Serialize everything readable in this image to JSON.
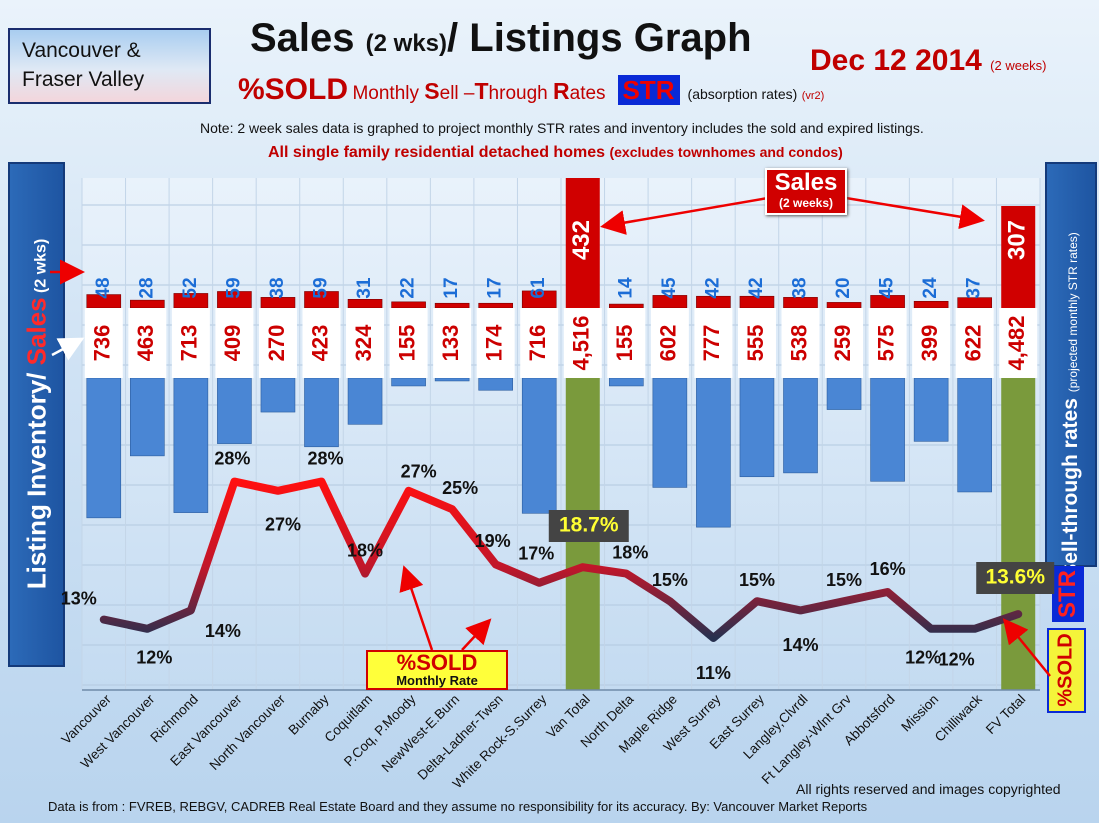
{
  "header": {
    "region_line1": "Vancouver &",
    "region_line2": "Fraser Valley",
    "title_main": "Sales",
    "title_small": "(2 wks)",
    "title_rest": "/ Listings Graph",
    "date": "Dec 12 2014",
    "date_note": "(2 weeks)",
    "subtitle_sold": "%SOLD",
    "subtitle_m": "Monthly ",
    "subtitle_s1": "S",
    "subtitle_s2": "ell –",
    "subtitle_t1": "T",
    "subtitle_t2": "hrough ",
    "subtitle_r1": "R",
    "subtitle_r2": "ates",
    "str_badge": "STR",
    "absorption": "(absorption rates)",
    "version": "(vr2)",
    "note": "Note: 2 week sales data is graphed to project monthly STR rates and inventory includes the sold and expired listings.",
    "note2_main": "All single family residential detached homes",
    "note2_small": "(excludes townhomes and condos)"
  },
  "side_labels": {
    "left_inventory": "Listing Inventory/ ",
    "left_sales": "Sales",
    "left_small": " (2 wks)",
    "right_main": "Sell-through rates",
    "right_small": "(projected monthly STR rates)",
    "right_str": "STR",
    "right_sold": "%SOLD"
  },
  "annotations": {
    "sales_callout": "Sales",
    "sales_callout_sub": "(2 weeks)",
    "sold_legend": "%SOLD",
    "sold_legend_sub": "Monthly Rate",
    "van_total_pct_badge": "18.7%",
    "fv_total_pct_badge": "13.6%"
  },
  "footer": {
    "copyright": "All rights reserved and  images copyrighted",
    "source": "Data is from : FVREB, REBGV, CADREB Real Estate Board and they assume no responsibility for its accuracy. By: Vancouver Market Reports"
  },
  "colors": {
    "sales_bar": "#d00000",
    "inventory_bar": "#4a86d4",
    "total_bar": "#7a9a3c",
    "line_red": "#ee1111",
    "line_dark": "#27304f",
    "badge_bg": "#444444",
    "badge_text": "#ffff33"
  },
  "chart_data": {
    "type": "bar",
    "categories": [
      "Vancouver",
      "West Vancouver",
      "Richmond",
      "East Vancouver",
      "North Vancouver",
      "Burnaby",
      "Coquitlam",
      "P.Coq, P.Moody",
      "NewWest-E.Burn",
      "Delta-Ladner-Twsn",
      "White Rock-S.Surrey",
      "Van Total",
      "North Delta",
      "Maple Ridge",
      "West Surrey",
      "East Surrey",
      "Langley,Clvrdl",
      "Ft Langley-Wlnt Grv",
      "Abbotsford",
      "Mission",
      "Chilliwack",
      "FV Total"
    ],
    "series": [
      {
        "name": "Sales",
        "values": [
          48,
          28,
          52,
          59,
          38,
          59,
          31,
          22,
          17,
          17,
          61,
          432,
          14,
          45,
          42,
          42,
          38,
          20,
          45,
          24,
          37,
          307
        ]
      },
      {
        "name": "Listing Inventory",
        "values": [
          736,
          463,
          713,
          409,
          270,
          423,
          324,
          155,
          133,
          174,
          716,
          4516,
          155,
          602,
          777,
          555,
          538,
          259,
          575,
          399,
          622,
          4482
        ]
      },
      {
        "name": "%SOLD",
        "values": [
          13,
          12,
          14,
          28,
          27,
          28,
          18,
          27,
          25,
          19,
          17,
          18.7,
          18,
          15,
          11,
          15,
          14,
          15,
          16,
          12,
          12,
          13.6
        ]
      }
    ],
    "inventory_labels": [
      "736",
      "463",
      "713",
      "409",
      "270",
      "423",
      "324",
      "155",
      "133",
      "174",
      "716",
      "4,516",
      "155",
      "602",
      "777",
      "555",
      "538",
      "259",
      "575",
      "399",
      "622",
      "4,482"
    ],
    "percent_labels": [
      "13%",
      "12%",
      "14%",
      "28%",
      "27%",
      "28%",
      "18%",
      "27%",
      "25%",
      "19%",
      "17%",
      "",
      "18%",
      "15%",
      "11%",
      "15%",
      "14%",
      "15%",
      "16%",
      "12%",
      "12%",
      ""
    ],
    "ylabel_left": "Listing Inventory/ Sales (2 wks)",
    "ylabel_right": "Sell-through rates (projected monthly STR rates)",
    "grid": true
  }
}
